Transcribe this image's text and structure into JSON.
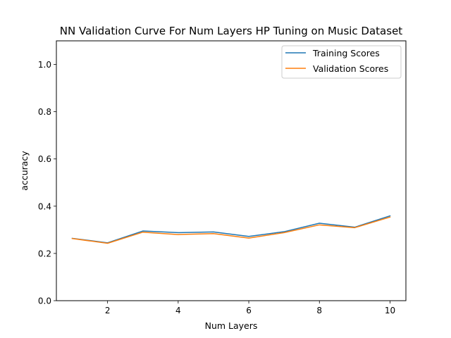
{
  "chart_data": {
    "type": "line",
    "title": "NN Validation Curve For Num Layers HP Tuning on Music Dataset",
    "xlabel": "Num Layers",
    "ylabel": "accuracy",
    "x": [
      1,
      2,
      3,
      4,
      5,
      6,
      7,
      8,
      9,
      10
    ],
    "xlim": [
      0.55,
      10.45
    ],
    "ylim": [
      0,
      1.1
    ],
    "xticks": [
      2,
      4,
      6,
      8,
      10
    ],
    "xtick_labels": [
      "2",
      "4",
      "6",
      "8",
      "10"
    ],
    "yticks": [
      0.0,
      0.2,
      0.4,
      0.6,
      0.8,
      1.0
    ],
    "ytick_labels": [
      "0.0",
      "0.2",
      "0.4",
      "0.6",
      "0.8",
      "1.0"
    ],
    "grid": false,
    "legend_position": "top-right",
    "series": [
      {
        "name": "Training Scores",
        "color": "#1f77b4",
        "values": [
          0.264,
          0.245,
          0.295,
          0.288,
          0.291,
          0.272,
          0.292,
          0.328,
          0.311,
          0.359
        ]
      },
      {
        "name": "Validation Scores",
        "color": "#ff7f0e",
        "values": [
          0.263,
          0.243,
          0.29,
          0.28,
          0.284,
          0.265,
          0.288,
          0.321,
          0.309,
          0.354
        ]
      }
    ]
  }
}
